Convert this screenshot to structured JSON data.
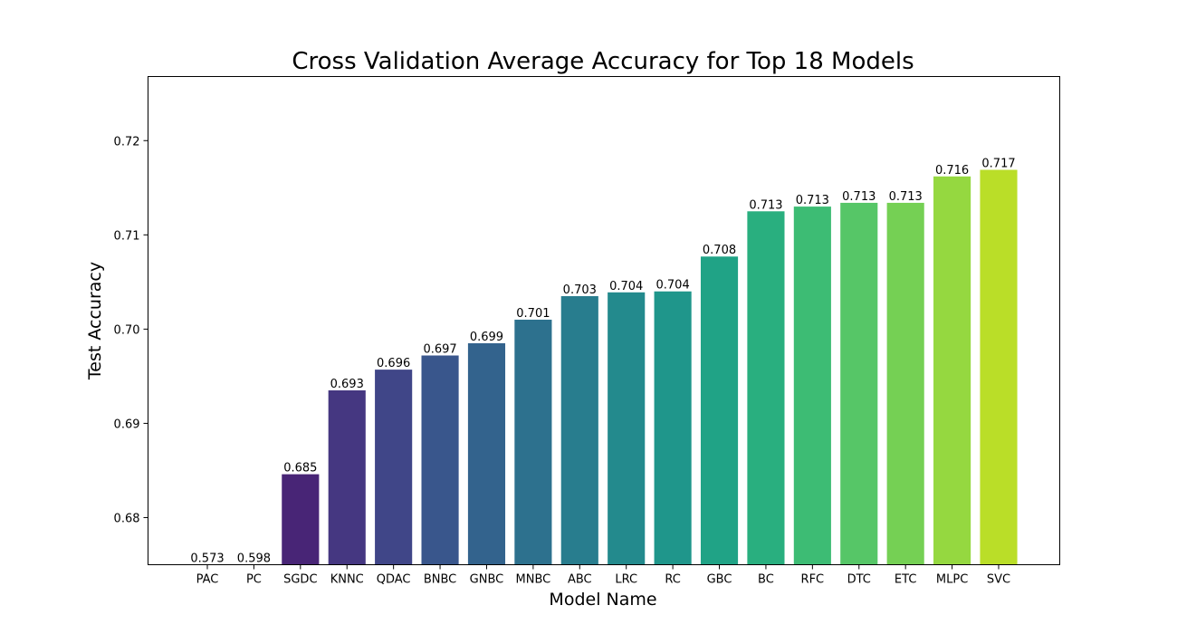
{
  "chart_data": {
    "type": "bar",
    "title": "Cross Validation Average Accuracy for Top 18 Models",
    "xlabel": "Model Name",
    "ylabel": "Test Accuracy",
    "categories": [
      "PAC",
      "PC",
      "SGDC",
      "KNNC",
      "QDAC",
      "BNBC",
      "GNBC",
      "MNBC",
      "ABC",
      "LRC",
      "RC",
      "GBC",
      "BC",
      "RFC",
      "DTC",
      "ETC",
      "MLPC",
      "SVC"
    ],
    "values": [
      0.573,
      0.598,
      0.6846,
      0.6935,
      0.6957,
      0.6972,
      0.6985,
      0.701,
      0.7035,
      0.7039,
      0.704,
      0.7077,
      0.7125,
      0.713,
      0.7134,
      0.7134,
      0.7162,
      0.7169
    ],
    "value_labels": [
      "0.573",
      "0.598",
      "0.685",
      "0.693",
      "0.696",
      "0.697",
      "0.699",
      "0.701",
      "0.703",
      "0.704",
      "0.704",
      "0.708",
      "0.713",
      "0.713",
      "0.713",
      "0.713",
      "0.716",
      "0.717"
    ],
    "ylim": [
      0.675,
      0.7268
    ],
    "yticks": [
      0.68,
      0.69,
      0.7,
      0.71,
      0.72
    ],
    "ytick_labels": [
      "0.68",
      "0.69",
      "0.70",
      "0.71",
      "0.72"
    ],
    "colors": [
      "#440154",
      "#481467",
      "#482576",
      "#453781",
      "#404688",
      "#39568c",
      "#33638d",
      "#2d718e",
      "#287d8e",
      "#238a8d",
      "#1f968b",
      "#20a386",
      "#29af7f",
      "#3dbc74",
      "#56c667",
      "#75d054",
      "#95d840",
      "#bade28"
    ],
    "grid": false,
    "legend": "none"
  }
}
